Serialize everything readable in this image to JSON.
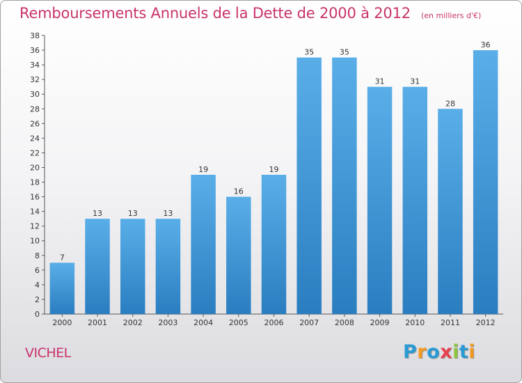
{
  "chart_data": {
    "type": "bar",
    "title": "Remboursements Annuels de la Dette de 2000 à 2012",
    "subtitle": "(en milliers d'€)",
    "categories": [
      "2000",
      "2001",
      "2002",
      "2003",
      "2004",
      "2005",
      "2006",
      "2007",
      "2008",
      "2009",
      "2010",
      "2011",
      "2012"
    ],
    "values": [
      7,
      13,
      13,
      13,
      19,
      16,
      19,
      35,
      35,
      31,
      31,
      28,
      36
    ],
    "ylim": [
      0,
      38
    ],
    "yticks": [
      0,
      2,
      4,
      6,
      8,
      10,
      12,
      14,
      16,
      18,
      20,
      22,
      24,
      26,
      28,
      30,
      32,
      34,
      36,
      38
    ],
    "grid": false,
    "bar_color_top": "#5aaee8",
    "bar_color_bottom": "#2a7ec0"
  },
  "footer": {
    "city": "VICHEL",
    "logo_letters": [
      {
        "char": "P",
        "color": "#2a9ad4"
      },
      {
        "char": "r",
        "color": "#f39a1e"
      },
      {
        "char": "o",
        "color": "#2a9ad4"
      },
      {
        "char": "x",
        "color": "#e8424e"
      },
      {
        "char": "i",
        "color": "#8cc63f"
      },
      {
        "char": "t",
        "color": "#2a9ad4"
      },
      {
        "char": "i",
        "color": "#f39a1e"
      }
    ]
  }
}
